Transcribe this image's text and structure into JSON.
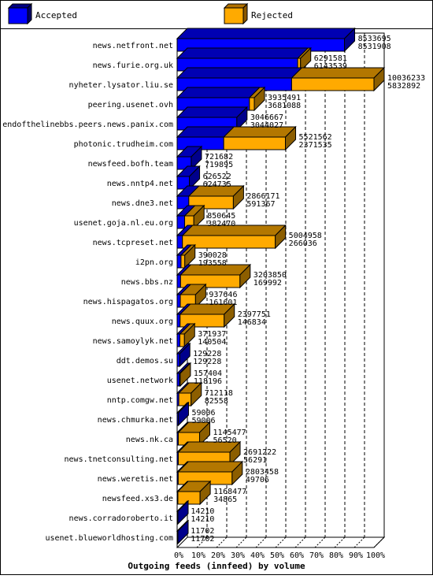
{
  "chart_data": {
    "type": "bar",
    "orientation": "horizontal",
    "stacked": true,
    "three_d": true,
    "title": "",
    "xlabel": "Outgoing feeds (innfeed) by volume",
    "ylabel": "",
    "xlim": [
      0,
      100
    ],
    "x_ticks": [
      "0%",
      "10%",
      "20%",
      "30%",
      "40%",
      "50%",
      "60%",
      "70%",
      "80%",
      "90%",
      "100%"
    ],
    "grid": "vertical dashed lines",
    "legend_position": "top",
    "series": [
      {
        "name": "Accepted",
        "color": "#0000ff"
      },
      {
        "name": "Rejected",
        "color": "#ffaa00"
      }
    ],
    "categories": [
      "news.netfront.net",
      "news.furie.org.uk",
      "nyheter.lysator.liu.se",
      "peering.usenet.ovh",
      "endofthelinebbs.peers.news.panix.com",
      "photonic.trudheim.com",
      "newsfeed.bofh.team",
      "news.nntp4.net",
      "news.dne3.net",
      "usenet.goja.nl.eu.org",
      "news.tcpreset.net",
      "i2pn.org",
      "news.bbs.nz",
      "news.hispagatos.org",
      "news.quux.org",
      "news.samoylyk.net",
      "ddt.demos.su",
      "usenet.network",
      "nntp.comgw.net",
      "news.chmurka.net",
      "news.nk.ca",
      "news.tnetconsulting.net",
      "news.weretis.net",
      "newsfeed.xs3.de",
      "news.corradoroberto.it",
      "usenet.blueworldhosting.com"
    ],
    "offered": [
      8533695,
      6291581,
      10036233,
      3935491,
      3046667,
      5521562,
      721682,
      626522,
      2866171,
      850645,
      5004958,
      390028,
      3203850,
      937646,
      2397751,
      371937,
      129228,
      157404,
      712118,
      59006,
      1145477,
      2691222,
      2803458,
      1168477,
      14210,
      11702
    ],
    "accepted": [
      8531908,
      6143539,
      5832892,
      3681088,
      3044027,
      2371535,
      719895,
      624735,
      591367,
      382470,
      266036,
      193558,
      169992,
      161601,
      146834,
      140504,
      129228,
      118196,
      82558,
      59006,
      56520,
      56291,
      49706,
      34865,
      14210,
      11702
    ]
  }
}
